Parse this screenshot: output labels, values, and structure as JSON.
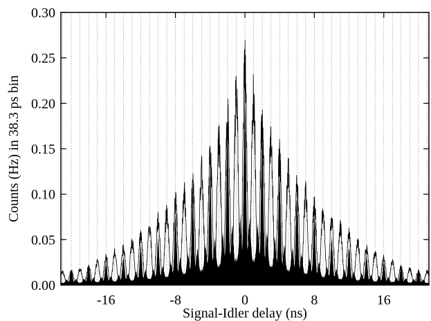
{
  "chart_data": {
    "type": "area",
    "title": "",
    "xlabel": "Signal-Idler delay (ns)",
    "ylabel": "Counts (Hz) in 38.3 ps bin",
    "xlim": [
      -21.2,
      21.2
    ],
    "ylim": [
      0,
      0.3
    ],
    "x_ticks": [
      -16,
      -8,
      0,
      8,
      16
    ],
    "x_tick_labels": [
      "-16",
      "-8",
      "0",
      "8",
      "16"
    ],
    "y_ticks": [
      0.0,
      0.05,
      0.1,
      0.15,
      0.2,
      0.25,
      0.3
    ],
    "y_tick_labels": [
      "0.00",
      "0.05",
      "0.10",
      "0.15",
      "0.20",
      "0.25",
      "0.30"
    ],
    "grid": {
      "vertical": "dotted",
      "horizontal": "none",
      "vertical_spacing": 1
    },
    "legend": "none",
    "series": [
      {
        "peak_spacing": 2,
        "x": [
          -20,
          -18,
          -16,
          -14,
          -12,
          -10,
          -8,
          -6,
          -4,
          -2,
          0,
          2,
          4,
          6,
          8,
          10,
          12,
          14,
          16,
          18,
          20
        ],
        "peak_values": [
          0.02,
          0.025,
          0.03,
          0.038,
          0.05,
          0.06,
          0.09,
          0.12,
          0.15,
          0.2,
          0.26,
          0.2,
          0.15,
          0.12,
          0.09,
          0.06,
          0.05,
          0.038,
          0.03,
          0.025,
          0.02
        ],
        "envelope_values": [
          0.015,
          0.02,
          0.03,
          0.04,
          0.055,
          0.07,
          0.09,
          0.11,
          0.14,
          0.18,
          0.24,
          0.18,
          0.14,
          0.11,
          0.09,
          0.07,
          0.055,
          0.04,
          0.03,
          0.02,
          0.015
        ]
      }
    ],
    "colors": {
      "fill": "#000000",
      "grid": "#333333",
      "axis": "#000000",
      "background": "#ffffff"
    }
  }
}
